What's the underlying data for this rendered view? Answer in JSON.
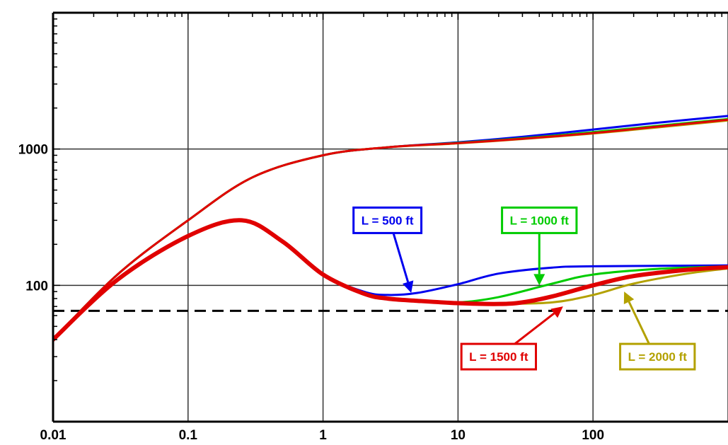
{
  "chart_data": {
    "type": "line",
    "title": "",
    "xlabel": "",
    "ylabel": "",
    "xscale": "log",
    "yscale": "log",
    "xlim": [
      0.01,
      1000
    ],
    "ylim": [
      10,
      10000
    ],
    "grid": true,
    "x_tick_labels": [
      {
        "value": 0.01,
        "label": "0.01"
      },
      {
        "value": 0.1,
        "label": "0.1"
      },
      {
        "value": 1,
        "label": "1"
      },
      {
        "value": 10,
        "label": "10"
      },
      {
        "value": 100,
        "label": "100"
      }
    ],
    "y_tick_labels": [
      {
        "value": 100,
        "label": "100"
      },
      {
        "value": 1000,
        "label": "1000"
      }
    ],
    "reference_line": {
      "y": 65,
      "style": "dashed",
      "color": "#000000"
    },
    "series": [
      {
        "key": "p500",
        "color": "#0000ee",
        "width": 3,
        "x": [
          0.01,
          0.03,
          0.1,
          0.3,
          1,
          3,
          10,
          30,
          100,
          300,
          1000
        ],
        "y": [
          40,
          120,
          300,
          620,
          900,
          1030,
          1120,
          1230,
          1390,
          1560,
          1750
        ]
      },
      {
        "key": "p1000",
        "color": "#00cc00",
        "width": 3,
        "x": [
          0.01,
          0.03,
          0.1,
          0.3,
          1,
          3,
          10,
          30,
          100,
          300,
          1000
        ],
        "y": [
          40,
          120,
          300,
          620,
          900,
          1030,
          1110,
          1200,
          1330,
          1480,
          1660
        ]
      },
      {
        "key": "p2000",
        "color": "#b3a100",
        "width": 3,
        "x": [
          0.01,
          0.03,
          0.1,
          0.3,
          1,
          3,
          10,
          30,
          100,
          300,
          1000
        ],
        "y": [
          40,
          120,
          300,
          620,
          900,
          1030,
          1100,
          1185,
          1300,
          1440,
          1620
        ]
      },
      {
        "key": "p1500",
        "color": "#e00000",
        "width": 3,
        "x": [
          0.01,
          0.03,
          0.1,
          0.3,
          1,
          3,
          10,
          30,
          100,
          300,
          1000
        ],
        "y": [
          40,
          120,
          300,
          620,
          900,
          1030,
          1105,
          1190,
          1310,
          1460,
          1640
        ]
      },
      {
        "key": "d500",
        "color": "#0000ee",
        "width": 3,
        "x": [
          0.01,
          0.03,
          0.1,
          0.25,
          0.5,
          1,
          2,
          3,
          5,
          10,
          20,
          50,
          100,
          1000
        ],
        "y": [
          40,
          110,
          230,
          300,
          210,
          120,
          90,
          85,
          88,
          102,
          122,
          135,
          138,
          140
        ]
      },
      {
        "key": "d1000",
        "color": "#00cc00",
        "width": 3,
        "x": [
          0.01,
          0.03,
          0.1,
          0.25,
          0.5,
          1,
          2,
          3,
          5,
          10,
          20,
          50,
          100,
          300,
          1000
        ],
        "y": [
          40,
          110,
          230,
          300,
          210,
          120,
          87,
          80,
          77,
          75,
          82,
          103,
          120,
          132,
          138
        ]
      },
      {
        "key": "d2000",
        "color": "#b3a100",
        "width": 3,
        "x": [
          0.01,
          0.03,
          0.1,
          0.25,
          0.5,
          1,
          2,
          3,
          5,
          10,
          20,
          50,
          100,
          200,
          500,
          1000
        ],
        "y": [
          40,
          110,
          230,
          300,
          210,
          120,
          87,
          80,
          77,
          74,
          73,
          75,
          85,
          103,
          122,
          133
        ]
      },
      {
        "key": "d1500",
        "color": "#e00000",
        "width": 6,
        "x": [
          0.01,
          0.03,
          0.1,
          0.25,
          0.5,
          1,
          2,
          3,
          5,
          10,
          20,
          30,
          50,
          100,
          200,
          500,
          1000
        ],
        "y": [
          40,
          110,
          230,
          300,
          210,
          120,
          87,
          80,
          77,
          74,
          73,
          75,
          83,
          100,
          117,
          130,
          136
        ]
      }
    ],
    "annotations": [
      {
        "text": "L = 500 ft",
        "color": "#0000ee",
        "box_center": [
          3,
          300
        ],
        "arrow_to": [
          4.5,
          88
        ]
      },
      {
        "text": "L = 1000 ft",
        "color": "#00cc00",
        "box_center": [
          40,
          300
        ],
        "arrow_to": [
          40,
          100
        ]
      },
      {
        "text": "L = 1500 ft",
        "color": "#e00000",
        "box_center": [
          20,
          30
        ],
        "arrow_to": [
          60,
          70
        ]
      },
      {
        "text": "L = 2000 ft",
        "color": "#b3a100",
        "box_center": [
          300,
          30
        ],
        "arrow_to": [
          170,
          90
        ]
      }
    ]
  }
}
